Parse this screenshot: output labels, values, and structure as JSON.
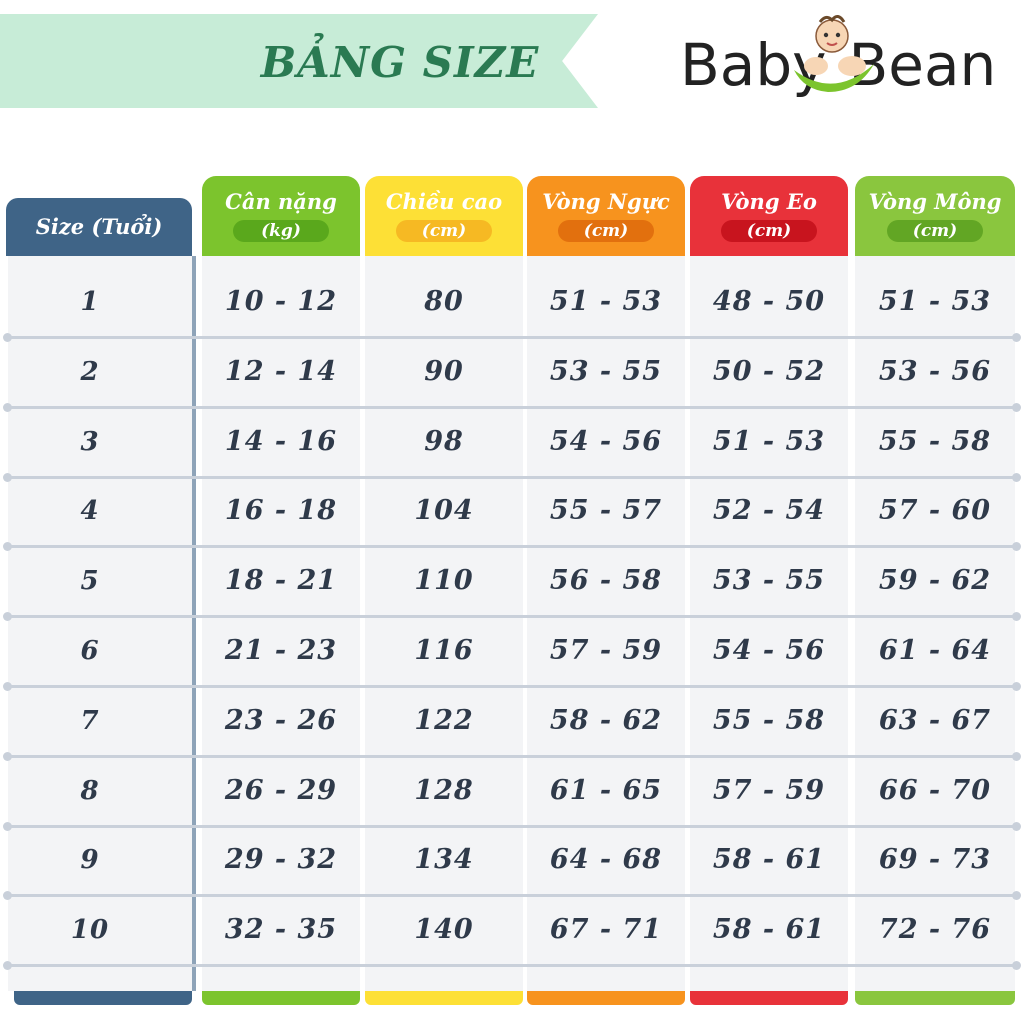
{
  "banner": {
    "title": "BẢNG SIZE"
  },
  "logo": {
    "word1": "Baby",
    "word2": "Bean"
  },
  "table": {
    "size_header": "Size (Tuổi)",
    "columns": [
      {
        "label": "Cân nặng",
        "unit": "(kg)",
        "color": "#7cc42d",
        "pill": "#5aa81c"
      },
      {
        "label": "Chiều cao",
        "unit": "(cm)",
        "color": "#fde036",
        "pill": "#f6b923"
      },
      {
        "label": "Vòng Ngực",
        "unit": "(cm)",
        "color": "#f7931e",
        "pill": "#e2700e"
      },
      {
        "label": "Vòng Eo",
        "unit": "(cm)",
        "color": "#e8323a",
        "pill": "#c8141e"
      },
      {
        "label": "Vòng Mông",
        "unit": "(cm)",
        "color": "#8ac63e",
        "pill": "#62a624"
      }
    ],
    "rows": [
      {
        "size": "1",
        "values": [
          "10 - 12",
          "80",
          "51 - 53",
          "48 - 50",
          "51 - 53"
        ]
      },
      {
        "size": "2",
        "values": [
          "12 - 14",
          "90",
          "53 - 55",
          "50 - 52",
          "53 - 56"
        ]
      },
      {
        "size": "3",
        "values": [
          "14 - 16",
          "98",
          "54 - 56",
          "51 - 53",
          "55 - 58"
        ]
      },
      {
        "size": "4",
        "values": [
          "16 - 18",
          "104",
          "55 - 57",
          "52 - 54",
          "57 - 60"
        ]
      },
      {
        "size": "5",
        "values": [
          "18 - 21",
          "110",
          "56 - 58",
          "53 - 55",
          "59 - 62"
        ]
      },
      {
        "size": "6",
        "values": [
          "21 - 23",
          "116",
          "57 - 59",
          "54 - 56",
          "61 - 64"
        ]
      },
      {
        "size": "7",
        "values": [
          "23 - 26",
          "122",
          "58 - 62",
          "55 - 58",
          "63 - 67"
        ]
      },
      {
        "size": "8",
        "values": [
          "26 - 29",
          "128",
          "61 - 65",
          "57 - 59",
          "66 - 70"
        ]
      },
      {
        "size": "9",
        "values": [
          "29 - 32",
          "134",
          "64 - 68",
          "58 - 61",
          "69 - 73"
        ]
      },
      {
        "size": "10",
        "values": [
          "32 - 35",
          "140",
          "67 - 71",
          "58 - 61",
          "72 - 76"
        ]
      }
    ]
  }
}
